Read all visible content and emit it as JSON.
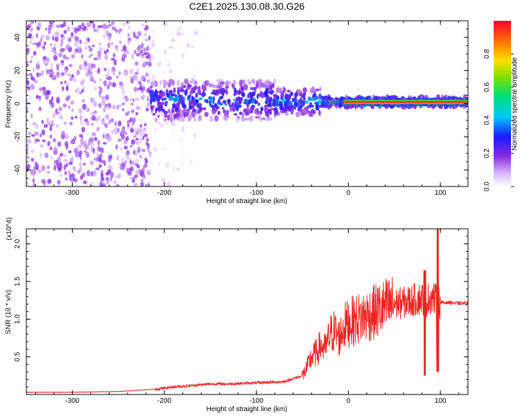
{
  "figure": {
    "title": "C2E1.2025.130.08.30.G26",
    "colors": {
      "snr_line": "#ee2222",
      "spectrogram_base": "#7a28e6",
      "background": "#ffffff"
    }
  },
  "chart_data": [
    {
      "type": "heatmap",
      "title": "C2E1.2025.130.08.30.G26",
      "xlabel": "Height of straight line (km)",
      "ylabel": "Frequency (Hz)",
      "xlim": [
        -350,
        130
      ],
      "ylim": [
        -50,
        50
      ],
      "x_ticks": [
        -300,
        -200,
        -100,
        0,
        100
      ],
      "y_ticks": [
        -40,
        -20,
        0,
        20,
        40
      ],
      "x_tick_labels": [
        "-300",
        "-200",
        "-100",
        "0",
        "100"
      ],
      "y_tick_labels": [
        "-40",
        "-20",
        "0",
        "20",
        "40"
      ],
      "colorbar": {
        "label": "Normalized spectral amplitude",
        "range": [
          0,
          1
        ],
        "ticks": [
          0.0,
          0.2,
          0.4,
          0.6,
          0.8
        ],
        "tick_labels": [
          "0.0",
          "0.2",
          "0.4",
          "0.6",
          "0.8"
        ],
        "colormap": "rainbow (white-violet-blue-cyan-green-yellow-red)"
      },
      "regions": [
        {
          "x_range": [
            -350,
            -215
          ],
          "frequency_range": [
            -50,
            50
          ],
          "description": "noise",
          "amplitude": 0.15
        },
        {
          "x_range": [
            -215,
            -165
          ],
          "frequency_range": [
            -50,
            50
          ],
          "description": "sparse noise",
          "amplitude": 0.05
        },
        {
          "x_range": [
            -215,
            -80
          ],
          "frequency_center": 2,
          "frequency_halfwidth": 12,
          "amplitude": 0.35
        },
        {
          "x_range": [
            -80,
            -30
          ],
          "frequency_center": 1,
          "frequency_halfwidth": 8,
          "amplitude": 0.4
        },
        {
          "x_range": [
            -30,
            130
          ],
          "frequency_center": 1,
          "frequency_halfwidth": 3,
          "amplitude": 0.6
        },
        {
          "x_range": [
            -5,
            130
          ],
          "frequency_center": 1,
          "frequency_halfwidth": 1,
          "amplitude": 0.95
        }
      ],
      "grid": false
    },
    {
      "type": "line",
      "xlabel": "Height of straight line (km)",
      "ylabel": "SNR (10 * v/v)",
      "y_multiplier": "(x10^4)",
      "xlim": [
        -350,
        130
      ],
      "ylim": [
        0,
        2.2
      ],
      "x_ticks": [
        -300,
        -200,
        -100,
        0,
        100
      ],
      "y_ticks": [
        0.5,
        1.0,
        1.5,
        2.0
      ],
      "x_tick_labels": [
        "-300",
        "-200",
        "-100",
        "0",
        "100"
      ],
      "y_tick_labels": [
        "0.5",
        "1.0",
        "1.5",
        "2.0"
      ],
      "series": [
        {
          "x": [
            -350,
            -300,
            -250,
            -210,
            -190,
            -170,
            -150,
            -130,
            -110,
            -90,
            -70,
            -50,
            -45,
            -40,
            -35,
            -30,
            -25,
            -20,
            -15,
            -10,
            -5,
            0,
            10,
            20,
            30,
            40,
            50,
            60,
            70,
            80,
            85,
            90,
            95,
            100,
            110,
            120,
            130
          ],
          "y": [
            0.03,
            0.03,
            0.04,
            0.07,
            0.1,
            0.12,
            0.14,
            0.14,
            0.15,
            0.16,
            0.17,
            0.25,
            0.35,
            0.5,
            0.55,
            0.65,
            0.6,
            0.8,
            0.85,
            0.75,
            0.9,
            0.95,
            1.0,
            1.05,
            1.1,
            1.15,
            1.2,
            1.22,
            1.25,
            1.28,
            1.25,
            1.3,
            1.25,
            1.22,
            1.22,
            1.21,
            1.21
          ],
          "color": "#ee2222"
        }
      ],
      "spikes": [
        {
          "x": 83,
          "y_min": 0.25,
          "y_max": 1.65
        },
        {
          "x": 97,
          "y_min": 0.3,
          "y_max": 2.2
        }
      ],
      "grid": false
    }
  ]
}
